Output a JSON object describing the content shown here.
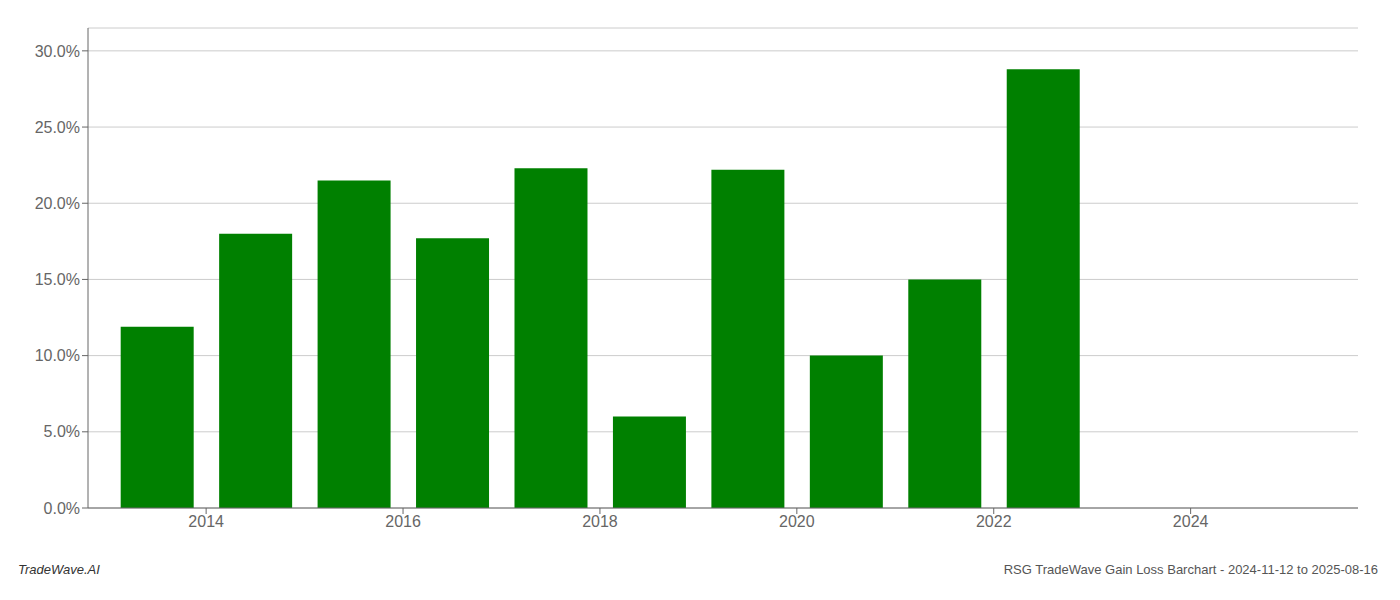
{
  "chart_data": {
    "type": "bar",
    "x": [
      2013,
      2014,
      2015,
      2016,
      2017,
      2018,
      2019,
      2020,
      2021,
      2022
    ],
    "values": [
      0.119,
      0.18,
      0.215,
      0.177,
      0.223,
      0.06,
      0.222,
      0.1,
      0.15,
      0.288
    ],
    "color": "#008000",
    "xlim": [
      2012.3,
      2025.2
    ],
    "xticks": [
      {
        "value": 2013.5,
        "label": "2014"
      },
      {
        "value": 2015.5,
        "label": "2016"
      },
      {
        "value": 2017.5,
        "label": "2018"
      },
      {
        "value": 2019.5,
        "label": "2020"
      },
      {
        "value": 2021.5,
        "label": "2022"
      },
      {
        "value": 2023.5,
        "label": "2024"
      }
    ],
    "ylim": [
      0,
      0.315
    ],
    "yticks": [
      {
        "value": 0,
        "label": "0.0%"
      },
      {
        "value": 0.05,
        "label": "5.0%"
      },
      {
        "value": 0.1,
        "label": "10.0%"
      },
      {
        "value": 0.15,
        "label": "15.0%"
      },
      {
        "value": 0.2,
        "label": "20.0%"
      },
      {
        "value": 0.25,
        "label": "25.0%"
      },
      {
        "value": 0.3,
        "label": "30.0%"
      }
    ],
    "grid": true,
    "annotations": [
      "TradeWave.AI",
      "RSG TradeWave Gain Loss Barchart - 2024-11-12 to 2025-08-16"
    ]
  }
}
